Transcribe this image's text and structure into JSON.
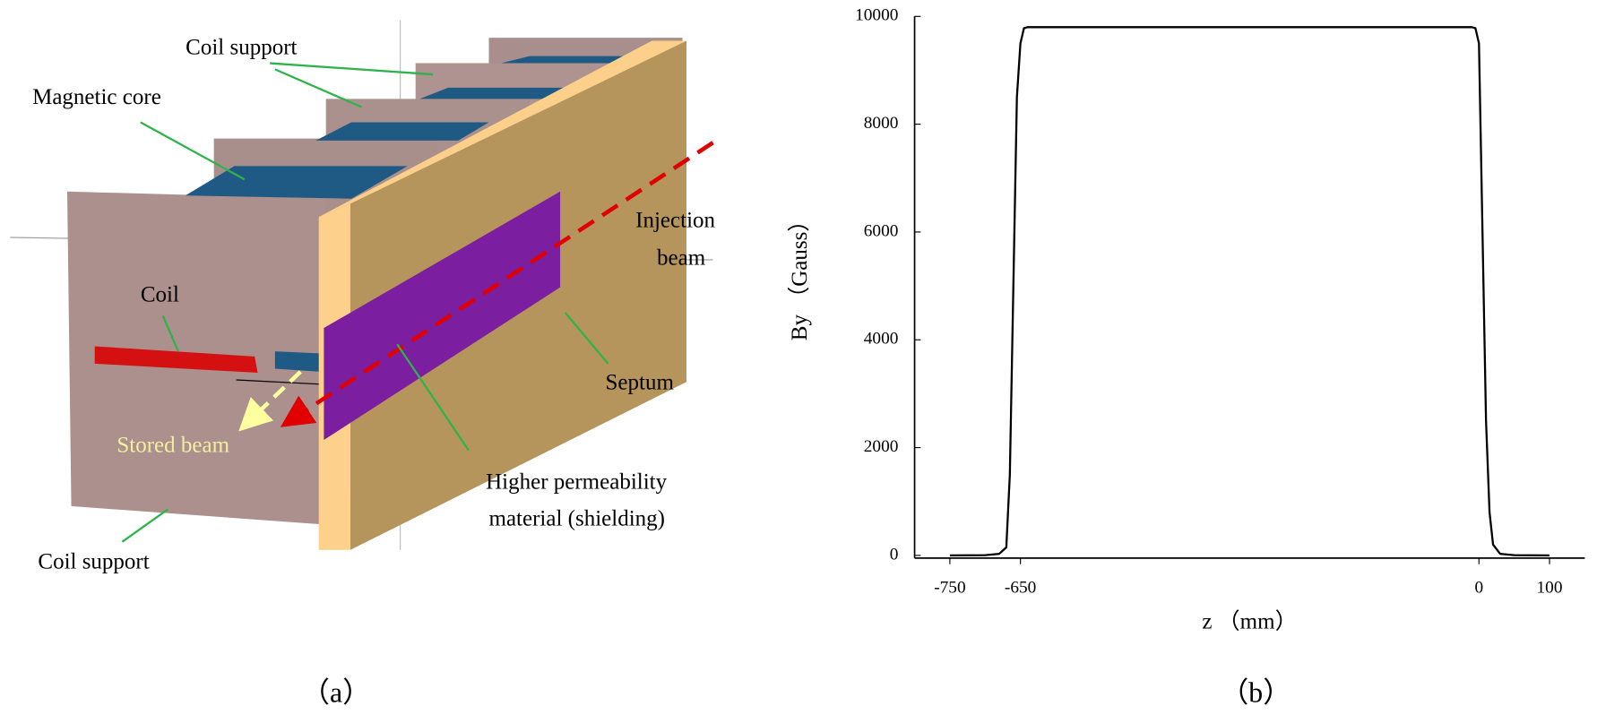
{
  "diagram": {
    "labels": [
      "Coil support",
      "Magnetic core",
      "Coil",
      "Stored beam",
      "Coil support",
      "Injection",
      "beam",
      "Septum",
      "Higher permeability",
      "material (shielding)"
    ],
    "caption": "（a）"
  },
  "chart_data": {
    "type": "line",
    "caption": "（b）",
    "xlabel": "z （mm）",
    "ylabel": "By （Gauss）",
    "x": [
      -750,
      -700,
      -680,
      -670,
      -665,
      -660,
      -655,
      -650,
      -645,
      -640,
      -10,
      -5,
      0,
      5,
      10,
      15,
      20,
      30,
      50,
      100
    ],
    "values": [
      0,
      5,
      30,
      150,
      1500,
      5000,
      8500,
      9500,
      9780,
      9800,
      9800,
      9780,
      9500,
      6000,
      2500,
      800,
      200,
      30,
      5,
      0
    ],
    "color": "#000000",
    "xlim": [
      -800,
      150
    ],
    "xticks": [
      -750,
      -650,
      0,
      100
    ],
    "ylim": [
      -50,
      10000
    ],
    "yticks": [
      0,
      2000,
      4000,
      6000,
      8000,
      10000
    ]
  }
}
